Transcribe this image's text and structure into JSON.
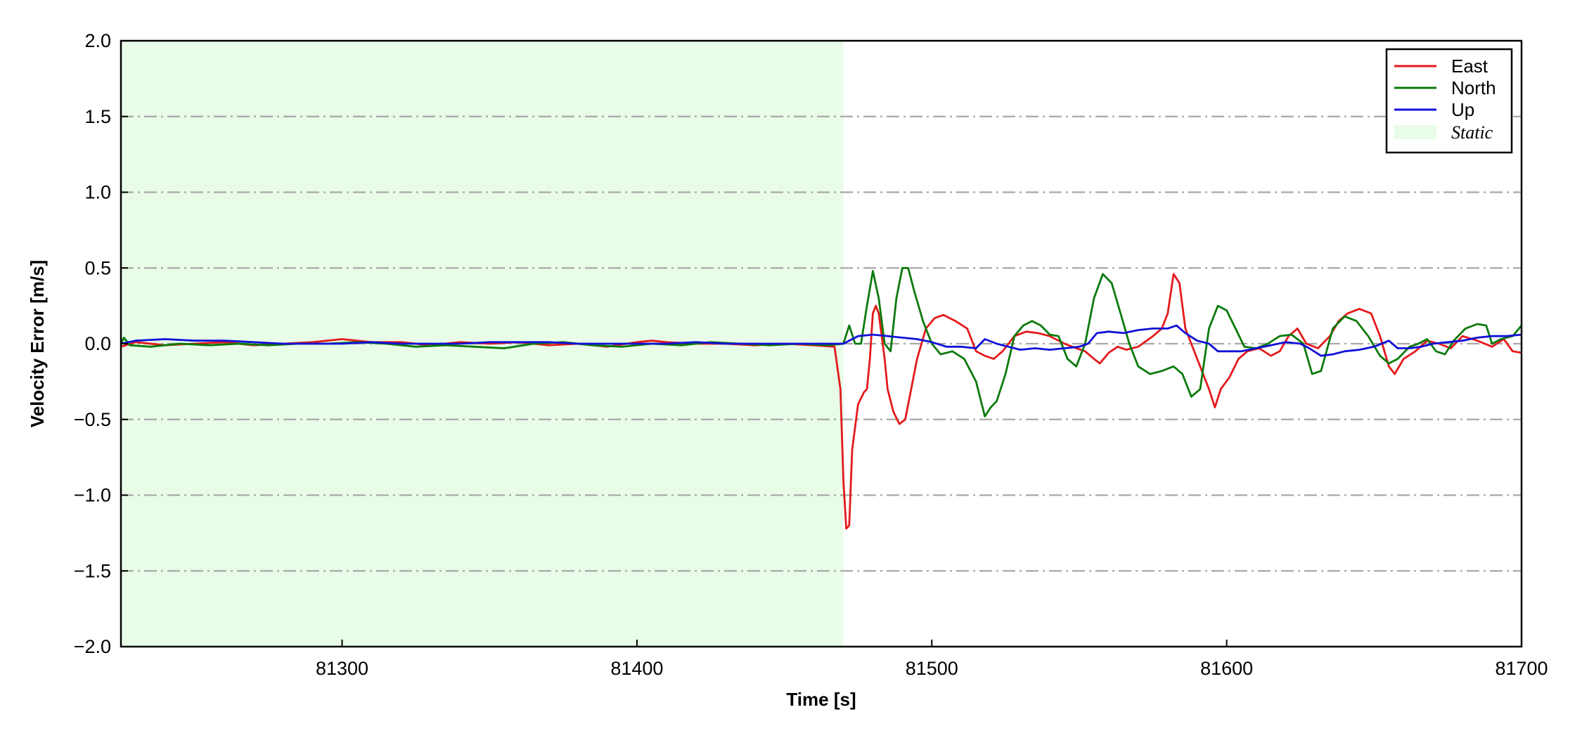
{
  "chart_data": {
    "type": "line",
    "xlabel": "Time [s]",
    "ylabel": "Velocity Error [m/s]",
    "xlim": [
      81225,
      81700
    ],
    "ylim": [
      -2.0,
      2.0
    ],
    "xticks": [
      81300,
      81400,
      81500,
      81600,
      81700
    ],
    "xtick_labels": [
      "81300",
      "81400",
      "81500",
      "81600",
      "81700"
    ],
    "yticks": [
      -2.0,
      -1.5,
      -1.0,
      -0.5,
      0.0,
      0.5,
      1.0,
      1.5,
      2.0
    ],
    "ytick_labels": [
      "−2.0",
      "−1.5",
      "−1.0",
      "−0.5",
      "0.0",
      "0.5",
      "1.0",
      "1.5",
      "2.0"
    ],
    "grid": "horizontal dash-dot",
    "legend_position": "top-right",
    "shaded_regions": [
      {
        "name": "Static",
        "x_start": 81225,
        "x_end": 81470,
        "color": "#e8fce8"
      }
    ],
    "series": [
      {
        "name": "East",
        "color": "#e31a1c",
        "points": [
          [
            81225,
            -0.02
          ],
          [
            81230,
            0.01
          ],
          [
            81240,
            -0.01
          ],
          [
            81250,
            0.0
          ],
          [
            81260,
            0.01
          ],
          [
            81270,
            -0.01
          ],
          [
            81280,
            0.0
          ],
          [
            81290,
            0.01
          ],
          [
            81295,
            0.02
          ],
          [
            81300,
            0.03
          ],
          [
            81305,
            0.02
          ],
          [
            81310,
            0.01
          ],
          [
            81320,
            0.01
          ],
          [
            81330,
            -0.01
          ],
          [
            81340,
            0.01
          ],
          [
            81350,
            0.0
          ],
          [
            81360,
            0.01
          ],
          [
            81370,
            -0.01
          ],
          [
            81380,
            0.0
          ],
          [
            81390,
            -0.02
          ],
          [
            81400,
            0.01
          ],
          [
            81405,
            0.02
          ],
          [
            81410,
            0.01
          ],
          [
            81420,
            0.0
          ],
          [
            81430,
            0.0
          ],
          [
            81440,
            -0.01
          ],
          [
            81450,
            0.0
          ],
          [
            81460,
            -0.01
          ],
          [
            81467,
            -0.02
          ],
          [
            81469,
            -0.3
          ],
          [
            81470,
            -0.9
          ],
          [
            81471,
            -1.22
          ],
          [
            81472,
            -1.2
          ],
          [
            81473,
            -0.7
          ],
          [
            81475,
            -0.4
          ],
          [
            81477,
            -0.32
          ],
          [
            81478,
            -0.3
          ],
          [
            81479,
            -0.1
          ],
          [
            81480,
            0.2
          ],
          [
            81481,
            0.25
          ],
          [
            81482,
            0.2
          ],
          [
            81484,
            -0.1
          ],
          [
            81485,
            -0.3
          ],
          [
            81487,
            -0.45
          ],
          [
            81489,
            -0.53
          ],
          [
            81491,
            -0.5
          ],
          [
            81493,
            -0.3
          ],
          [
            81495,
            -0.1
          ],
          [
            81498,
            0.1
          ],
          [
            81501,
            0.17
          ],
          [
            81504,
            0.19
          ],
          [
            81508,
            0.15
          ],
          [
            81512,
            0.1
          ],
          [
            81515,
            -0.05
          ],
          [
            81518,
            -0.08
          ],
          [
            81521,
            -0.1
          ],
          [
            81524,
            -0.05
          ],
          [
            81528,
            0.05
          ],
          [
            81532,
            0.08
          ],
          [
            81536,
            0.07
          ],
          [
            81540,
            0.05
          ],
          [
            81545,
            0.0
          ],
          [
            81549,
            -0.03
          ],
          [
            81552,
            -0.05
          ],
          [
            81555,
            -0.1
          ],
          [
            81557,
            -0.13
          ],
          [
            81560,
            -0.06
          ],
          [
            81563,
            -0.02
          ],
          [
            81566,
            -0.04
          ],
          [
            81570,
            -0.02
          ],
          [
            81575,
            0.05
          ],
          [
            81578,
            0.1
          ],
          [
            81580,
            0.2
          ],
          [
            81582,
            0.46
          ],
          [
            81584,
            0.4
          ],
          [
            81586,
            0.1
          ],
          [
            81589,
            -0.05
          ],
          [
            81592,
            -0.2
          ],
          [
            81594,
            -0.3
          ],
          [
            81596,
            -0.42
          ],
          [
            81598,
            -0.3
          ],
          [
            81601,
            -0.22
          ],
          [
            81604,
            -0.1
          ],
          [
            81607,
            -0.05
          ],
          [
            81611,
            -0.03
          ],
          [
            81615,
            -0.08
          ],
          [
            81618,
            -0.05
          ],
          [
            81621,
            0.05
          ],
          [
            81624,
            0.1
          ],
          [
            81627,
            0.0
          ],
          [
            81631,
            -0.03
          ],
          [
            81635,
            0.05
          ],
          [
            81638,
            0.15
          ],
          [
            81641,
            0.2
          ],
          [
            81645,
            0.23
          ],
          [
            81649,
            0.2
          ],
          [
            81652,
            0.05
          ],
          [
            81655,
            -0.15
          ],
          [
            81657,
            -0.2
          ],
          [
            81660,
            -0.1
          ],
          [
            81664,
            -0.05
          ],
          [
            81668,
            0.02
          ],
          [
            81672,
            0.0
          ],
          [
            81676,
            -0.03
          ],
          [
            81680,
            0.05
          ],
          [
            81685,
            0.02
          ],
          [
            81690,
            -0.02
          ],
          [
            81694,
            0.03
          ],
          [
            81697,
            -0.05
          ],
          [
            81700,
            -0.06
          ]
        ]
      },
      {
        "name": "North",
        "color": "#0b7a0b",
        "points": [
          [
            81225,
            0.0
          ],
          [
            81226,
            0.04
          ],
          [
            81228,
            -0.01
          ],
          [
            81235,
            -0.02
          ],
          [
            81245,
            0.0
          ],
          [
            81255,
            -0.01
          ],
          [
            81265,
            0.0
          ],
          [
            81275,
            -0.01
          ],
          [
            81285,
            0.0
          ],
          [
            81295,
            0.0
          ],
          [
            81305,
            0.01
          ],
          [
            81315,
            0.0
          ],
          [
            81325,
            -0.02
          ],
          [
            81335,
            -0.01
          ],
          [
            81345,
            -0.02
          ],
          [
            81355,
            -0.03
          ],
          [
            81365,
            0.0
          ],
          [
            81375,
            0.01
          ],
          [
            81385,
            -0.01
          ],
          [
            81395,
            -0.02
          ],
          [
            81405,
            0.0
          ],
          [
            81415,
            -0.01
          ],
          [
            81425,
            0.01
          ],
          [
            81435,
            0.0
          ],
          [
            81445,
            -0.01
          ],
          [
            81455,
            0.0
          ],
          [
            81465,
            -0.01
          ],
          [
            81470,
            0.0
          ],
          [
            81472,
            0.12
          ],
          [
            81474,
            0.0
          ],
          [
            81476,
            0.0
          ],
          [
            81478,
            0.25
          ],
          [
            81480,
            0.48
          ],
          [
            81482,
            0.3
          ],
          [
            81484,
            0.0
          ],
          [
            81486,
            -0.05
          ],
          [
            81488,
            0.3
          ],
          [
            81490,
            0.5
          ],
          [
            81492,
            0.5
          ],
          [
            81494,
            0.35
          ],
          [
            81497,
            0.15
          ],
          [
            81500,
            0.0
          ],
          [
            81503,
            -0.07
          ],
          [
            81507,
            -0.05
          ],
          [
            81511,
            -0.1
          ],
          [
            81515,
            -0.25
          ],
          [
            81518,
            -0.48
          ],
          [
            81520,
            -0.42
          ],
          [
            81522,
            -0.38
          ],
          [
            81525,
            -0.2
          ],
          [
            81528,
            0.05
          ],
          [
            81531,
            0.12
          ],
          [
            81534,
            0.15
          ],
          [
            81537,
            0.12
          ],
          [
            81540,
            0.06
          ],
          [
            81543,
            0.05
          ],
          [
            81546,
            -0.1
          ],
          [
            81549,
            -0.15
          ],
          [
            81552,
            0.0
          ],
          [
            81555,
            0.3
          ],
          [
            81558,
            0.46
          ],
          [
            81561,
            0.4
          ],
          [
            81564,
            0.2
          ],
          [
            81567,
            0.0
          ],
          [
            81570,
            -0.15
          ],
          [
            81574,
            -0.2
          ],
          [
            81578,
            -0.18
          ],
          [
            81582,
            -0.15
          ],
          [
            81585,
            -0.2
          ],
          [
            81588,
            -0.35
          ],
          [
            81591,
            -0.3
          ],
          [
            81594,
            0.1
          ],
          [
            81597,
            0.25
          ],
          [
            81600,
            0.22
          ],
          [
            81603,
            0.1
          ],
          [
            81606,
            -0.02
          ],
          [
            81610,
            -0.03
          ],
          [
            81614,
            0.0
          ],
          [
            81618,
            0.05
          ],
          [
            81622,
            0.06
          ],
          [
            81626,
            0.0
          ],
          [
            81629,
            -0.2
          ],
          [
            81632,
            -0.18
          ],
          [
            81636,
            0.1
          ],
          [
            81640,
            0.18
          ],
          [
            81644,
            0.15
          ],
          [
            81648,
            0.05
          ],
          [
            81652,
            -0.08
          ],
          [
            81655,
            -0.13
          ],
          [
            81658,
            -0.1
          ],
          [
            81662,
            -0.02
          ],
          [
            81665,
            0.0
          ],
          [
            81668,
            0.03
          ],
          [
            81671,
            -0.05
          ],
          [
            81674,
            -0.07
          ],
          [
            81677,
            0.02
          ],
          [
            81681,
            0.1
          ],
          [
            81685,
            0.13
          ],
          [
            81688,
            0.12
          ],
          [
            81690,
            0.0
          ],
          [
            81693,
            0.03
          ],
          [
            81697,
            0.05
          ],
          [
            81700,
            0.12
          ]
        ]
      },
      {
        "name": "Up",
        "color": "#1010d8",
        "points": [
          [
            81225,
            0.0
          ],
          [
            81230,
            0.02
          ],
          [
            81240,
            0.03
          ],
          [
            81250,
            0.02
          ],
          [
            81260,
            0.02
          ],
          [
            81270,
            0.01
          ],
          [
            81280,
            0.0
          ],
          [
            81290,
            0.0
          ],
          [
            81300,
            0.0
          ],
          [
            81310,
            0.01
          ],
          [
            81320,
            0.0
          ],
          [
            81330,
            0.0
          ],
          [
            81340,
            0.0
          ],
          [
            81350,
            0.01
          ],
          [
            81360,
            0.01
          ],
          [
            81370,
            0.01
          ],
          [
            81380,
            0.0
          ],
          [
            81390,
            0.0
          ],
          [
            81400,
            0.0
          ],
          [
            81410,
            0.0
          ],
          [
            81420,
            0.01
          ],
          [
            81430,
            0.0
          ],
          [
            81440,
            0.0
          ],
          [
            81450,
            0.0
          ],
          [
            81460,
            0.0
          ],
          [
            81470,
            0.0
          ],
          [
            81475,
            0.05
          ],
          [
            81480,
            0.06
          ],
          [
            81485,
            0.05
          ],
          [
            81490,
            0.04
          ],
          [
            81495,
            0.03
          ],
          [
            81500,
            0.01
          ],
          [
            81505,
            -0.02
          ],
          [
            81510,
            -0.02
          ],
          [
            81515,
            -0.03
          ],
          [
            81518,
            0.03
          ],
          [
            81522,
            0.0
          ],
          [
            81526,
            -0.02
          ],
          [
            81530,
            -0.04
          ],
          [
            81535,
            -0.03
          ],
          [
            81540,
            -0.04
          ],
          [
            81545,
            -0.03
          ],
          [
            81550,
            -0.02
          ],
          [
            81553,
            0.0
          ],
          [
            81556,
            0.07
          ],
          [
            81560,
            0.08
          ],
          [
            81565,
            0.07
          ],
          [
            81570,
            0.09
          ],
          [
            81575,
            0.1
          ],
          [
            81580,
            0.1
          ],
          [
            81583,
            0.12
          ],
          [
            81586,
            0.07
          ],
          [
            81590,
            0.02
          ],
          [
            81594,
            0.0
          ],
          [
            81597,
            -0.05
          ],
          [
            81601,
            -0.05
          ],
          [
            81605,
            -0.05
          ],
          [
            81610,
            -0.03
          ],
          [
            81615,
            -0.01
          ],
          [
            81620,
            0.01
          ],
          [
            81625,
            0.0
          ],
          [
            81628,
            -0.03
          ],
          [
            81632,
            -0.08
          ],
          [
            81636,
            -0.07
          ],
          [
            81640,
            -0.05
          ],
          [
            81645,
            -0.04
          ],
          [
            81650,
            -0.02
          ],
          [
            81655,
            0.02
          ],
          [
            81658,
            -0.03
          ],
          [
            81662,
            -0.03
          ],
          [
            81666,
            -0.02
          ],
          [
            81670,
            0.0
          ],
          [
            81675,
            0.01
          ],
          [
            81680,
            0.02
          ],
          [
            81685,
            0.04
          ],
          [
            81690,
            0.05
          ],
          [
            81695,
            0.05
          ],
          [
            81700,
            0.06
          ]
        ]
      }
    ]
  }
}
